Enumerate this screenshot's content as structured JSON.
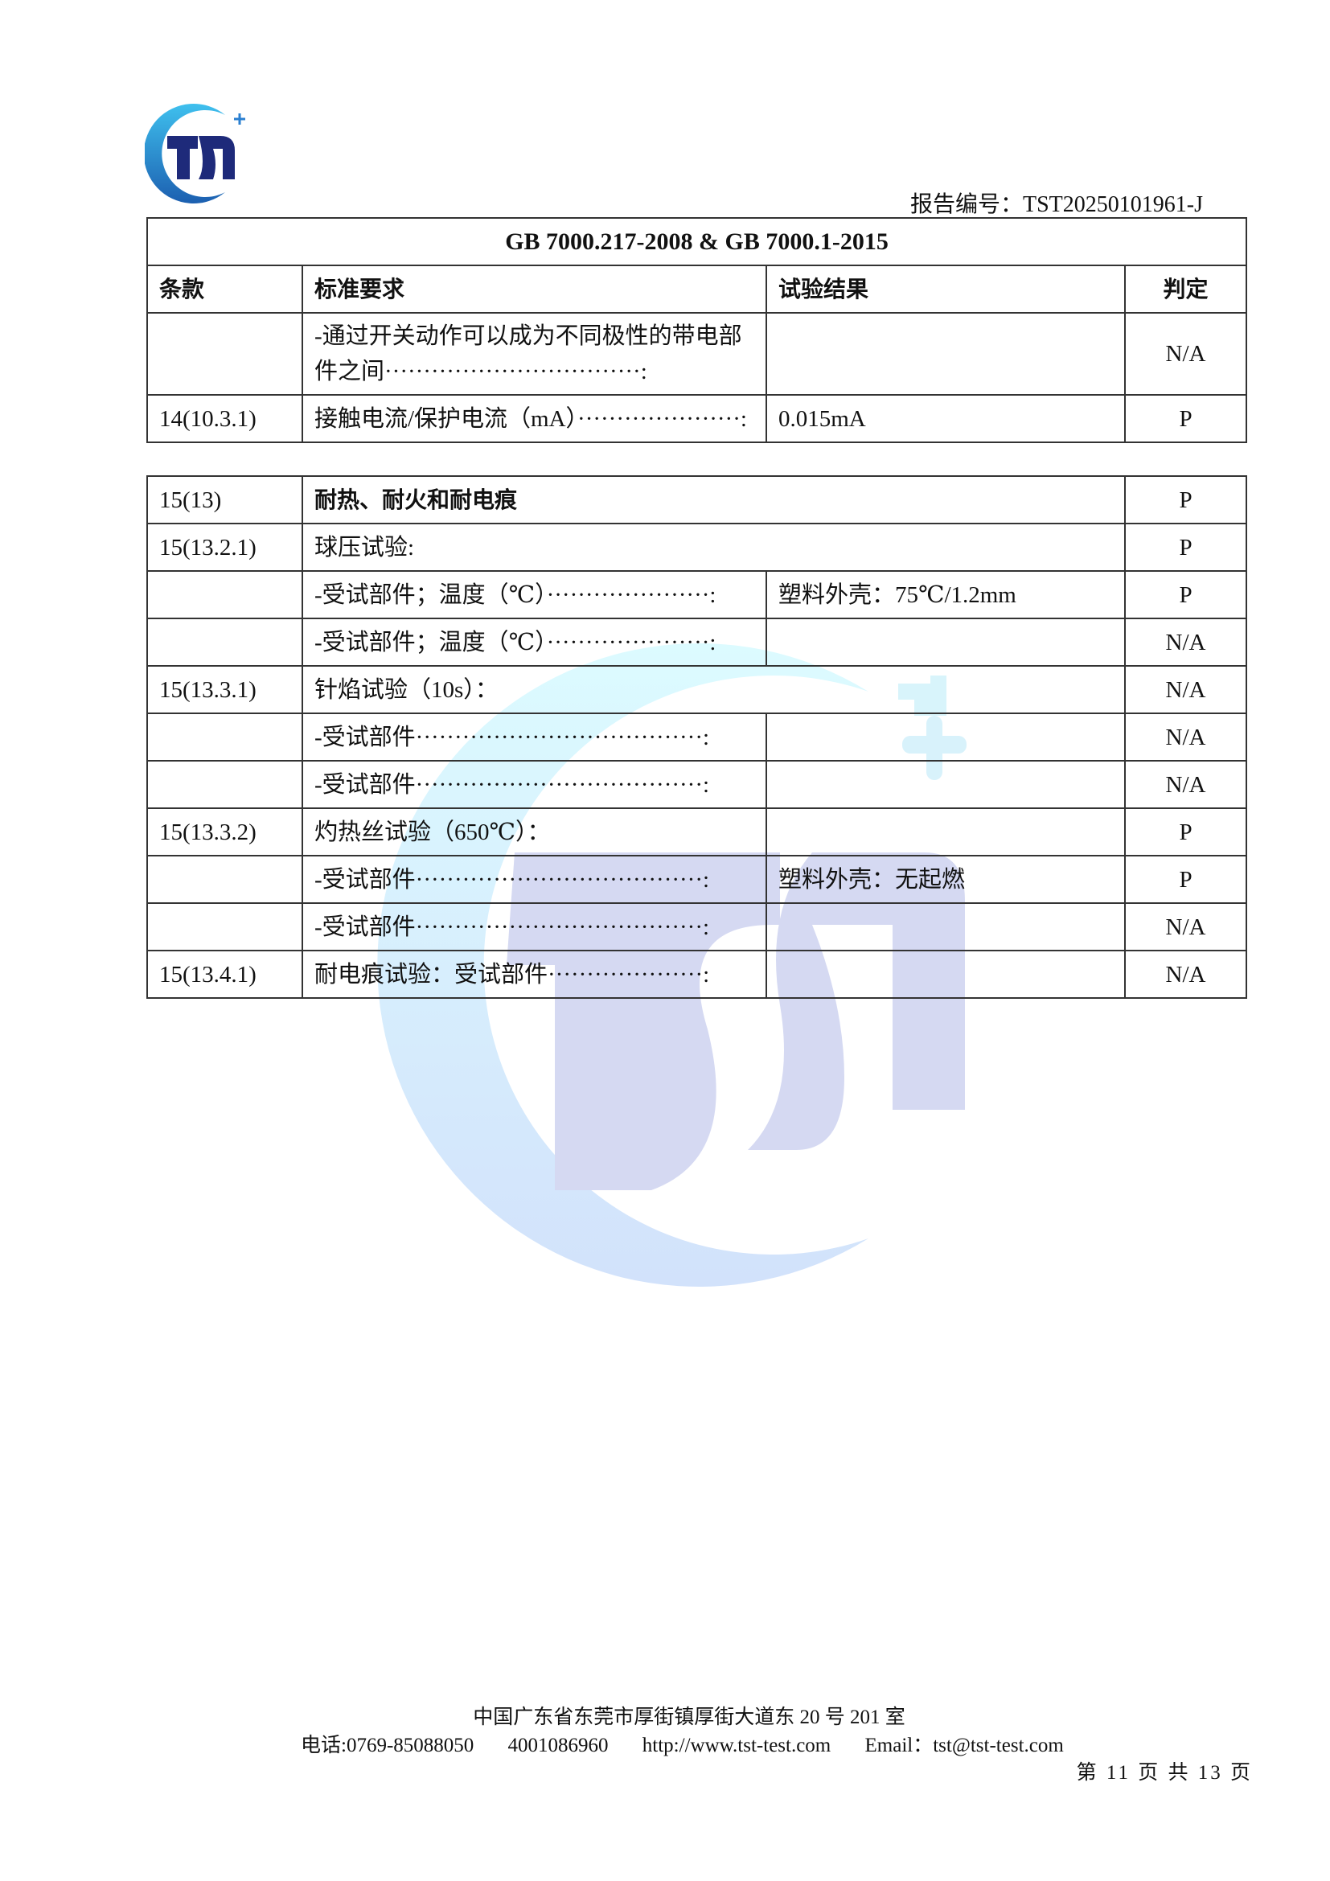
{
  "header": {
    "logo_text": "TSI",
    "report_no_label": "报告编号：",
    "report_no": "TST20250101961-J"
  },
  "table1": {
    "title": "GB 7000.217-2008 & GB 7000.1-2015",
    "columns": [
      "条款",
      "标准要求",
      "试验结果",
      "判定"
    ],
    "rows": [
      {
        "clause": "",
        "requirement": "-通过开关动作可以成为不同极性的带电部件之间·································:",
        "result": "",
        "verdict": "N/A"
      },
      {
        "clause": "14(10.3.1)",
        "requirement": "接触电流/保护电流（mA）·····················:",
        "result": "0.015mA",
        "verdict": "P"
      }
    ]
  },
  "table2": {
    "rows": [
      {
        "clause": "15(13)",
        "requirement": "耐热、耐火和耐电痕",
        "result": null,
        "verdict": "P",
        "bold": true
      },
      {
        "clause": "15(13.2.1)",
        "requirement": "球压试验:",
        "result": null,
        "verdict": "P"
      },
      {
        "clause": "",
        "requirement": "-受试部件；温度（℃）·····················:",
        "result": "塑料外壳：75℃/1.2mm",
        "verdict": "P"
      },
      {
        "clause": "",
        "requirement": "-受试部件；温度（℃）·····················:",
        "result": "",
        "verdict": "N/A"
      },
      {
        "clause": "15(13.3.1)",
        "requirement": "针焰试验（10s）：",
        "result": null,
        "verdict": "N/A"
      },
      {
        "clause": "",
        "requirement": "-受试部件·····································:",
        "result": "",
        "verdict": "N/A"
      },
      {
        "clause": "",
        "requirement": "-受试部件·····································:",
        "result": "",
        "verdict": "N/A"
      },
      {
        "clause": "15(13.3.2)",
        "requirement": "灼热丝试验（650℃）：",
        "result": "",
        "verdict": "P"
      },
      {
        "clause": "",
        "requirement": "-受试部件·····································:",
        "result": "塑料外壳：无起燃",
        "verdict": "P"
      },
      {
        "clause": "",
        "requirement": "-受试部件·····································:",
        "result": "",
        "verdict": "N/A"
      },
      {
        "clause": "15(13.4.1)",
        "requirement": "耐电痕试验：受试部件····················:",
        "result": "",
        "verdict": "N/A"
      }
    ]
  },
  "footer": {
    "address": "中国广东省东莞市厚街镇厚街大道东 20 号 201 室",
    "phone": "电话:0769-85088050",
    "hotline": "4001086960",
    "website": "http://www.tst-test.com",
    "email": "Email：tst@tst-test.com",
    "page": "第 11 页 共 13 页"
  },
  "colors": {
    "brand_dark": "#1e2a7a",
    "brand_light": "#3fb6e8",
    "watermark_blue": "#d4d8f2",
    "watermark_cyan": "#dff6fb"
  }
}
